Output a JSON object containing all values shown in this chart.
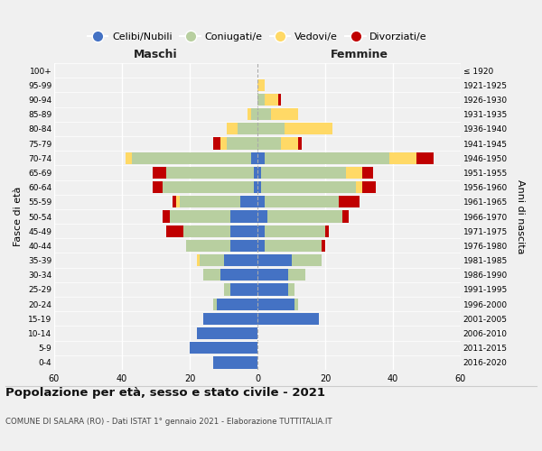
{
  "age_groups": [
    "0-4",
    "5-9",
    "10-14",
    "15-19",
    "20-24",
    "25-29",
    "30-34",
    "35-39",
    "40-44",
    "45-49",
    "50-54",
    "55-59",
    "60-64",
    "65-69",
    "70-74",
    "75-79",
    "80-84",
    "85-89",
    "90-94",
    "95-99",
    "100+"
  ],
  "birth_years": [
    "2016-2020",
    "2011-2015",
    "2006-2010",
    "2001-2005",
    "1996-2000",
    "1991-1995",
    "1986-1990",
    "1981-1985",
    "1976-1980",
    "1971-1975",
    "1966-1970",
    "1961-1965",
    "1956-1960",
    "1951-1955",
    "1946-1950",
    "1941-1945",
    "1936-1940",
    "1931-1935",
    "1926-1930",
    "1921-1925",
    "≤ 1920"
  ],
  "maschi": {
    "celibi": [
      13,
      20,
      18,
      16,
      12,
      8,
      11,
      10,
      8,
      8,
      8,
      5,
      1,
      1,
      2,
      0,
      0,
      0,
      0,
      0,
      0
    ],
    "coniugati": [
      0,
      0,
      0,
      0,
      1,
      2,
      5,
      7,
      13,
      14,
      18,
      18,
      27,
      26,
      35,
      9,
      6,
      2,
      0,
      0,
      0
    ],
    "vedovi": [
      0,
      0,
      0,
      0,
      0,
      0,
      0,
      1,
      0,
      0,
      0,
      1,
      0,
      0,
      2,
      2,
      3,
      1,
      0,
      0,
      0
    ],
    "divorziati": [
      0,
      0,
      0,
      0,
      0,
      0,
      0,
      0,
      0,
      5,
      2,
      1,
      3,
      4,
      0,
      2,
      0,
      0,
      0,
      0,
      0
    ]
  },
  "femmine": {
    "nubili": [
      0,
      0,
      0,
      18,
      11,
      9,
      9,
      10,
      2,
      2,
      3,
      2,
      1,
      1,
      2,
      0,
      0,
      0,
      0,
      0,
      0
    ],
    "coniugate": [
      0,
      0,
      0,
      0,
      1,
      2,
      5,
      9,
      17,
      18,
      22,
      22,
      28,
      25,
      37,
      7,
      8,
      4,
      2,
      0,
      0
    ],
    "vedove": [
      0,
      0,
      0,
      0,
      0,
      0,
      0,
      0,
      0,
      0,
      0,
      0,
      2,
      5,
      8,
      5,
      14,
      8,
      4,
      2,
      0
    ],
    "divorziate": [
      0,
      0,
      0,
      0,
      0,
      0,
      0,
      0,
      1,
      1,
      2,
      6,
      4,
      3,
      5,
      1,
      0,
      0,
      1,
      0,
      0
    ]
  },
  "colors": {
    "celibi_nubili": "#4472c4",
    "coniugati": "#b8cfa0",
    "vedovi": "#ffd966",
    "divorziati": "#c00000"
  },
  "xlim": 60,
  "title": "Popolazione per età, sesso e stato civile - 2021",
  "subtitle": "COMUNE DI SALARA (RO) - Dati ISTAT 1° gennaio 2021 - Elaborazione TUTTITALIA.IT",
  "ylabel": "Fasce di età",
  "ylabel_right": "Anni di nascita",
  "legend_labels": [
    "Celibi/Nubili",
    "Coniugati/e",
    "Vedovi/e",
    "Divorziati/e"
  ],
  "background_color": "#f0f0f0"
}
